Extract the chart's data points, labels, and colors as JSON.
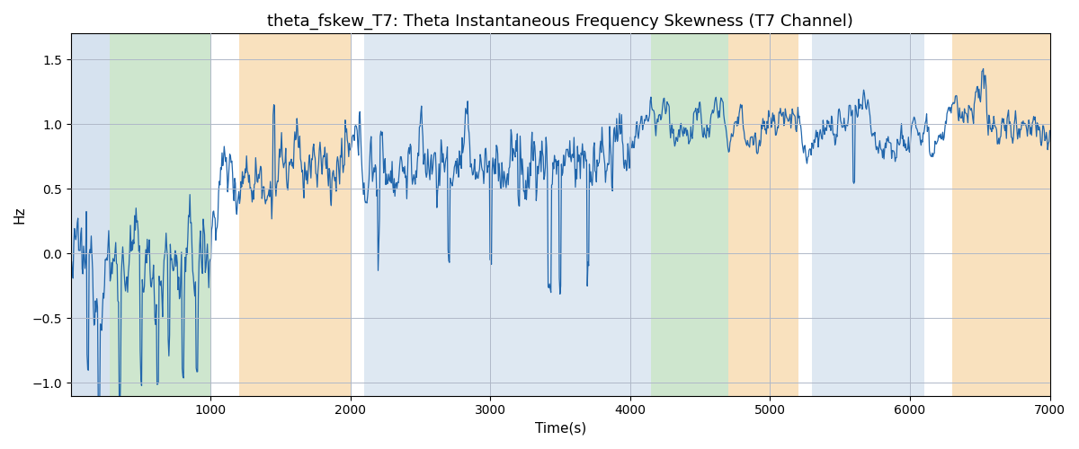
{
  "title": "theta_fskew_T7: Theta Instantaneous Frequency Skewness (T7 Channel)",
  "xlabel": "Time(s)",
  "ylabel": "Hz",
  "xlim": [
    0,
    7000
  ],
  "ylim": [
    -1.1,
    1.7
  ],
  "line_color": "#2166ac",
  "line_width": 0.9,
  "title_fontsize": 13,
  "grid_color": "#b0b8c8",
  "bands": [
    {
      "xmin": 0,
      "xmax": 280,
      "color": "#aec6e0",
      "alpha": 0.5
    },
    {
      "xmin": 280,
      "xmax": 1000,
      "color": "#9ecf9e",
      "alpha": 0.5
    },
    {
      "xmin": 1200,
      "xmax": 2000,
      "color": "#f5c98a",
      "alpha": 0.55
    },
    {
      "xmin": 2100,
      "xmax": 2600,
      "color": "#aec6e0",
      "alpha": 0.4
    },
    {
      "xmin": 2600,
      "xmax": 4050,
      "color": "#aec6e0",
      "alpha": 0.4
    },
    {
      "xmin": 4050,
      "xmax": 4150,
      "color": "#aec6e0",
      "alpha": 0.4
    },
    {
      "xmin": 4150,
      "xmax": 4700,
      "color": "#9ecf9e",
      "alpha": 0.5
    },
    {
      "xmin": 4700,
      "xmax": 5200,
      "color": "#f5c98a",
      "alpha": 0.55
    },
    {
      "xmin": 5300,
      "xmax": 6100,
      "color": "#aec6e0",
      "alpha": 0.4
    },
    {
      "xmin": 6300,
      "xmax": 7000,
      "color": "#f5c98a",
      "alpha": 0.55
    }
  ],
  "seed": 12345,
  "n_points": 1400,
  "xticks": [
    1000,
    2000,
    3000,
    4000,
    5000,
    6000,
    7000
  ]
}
